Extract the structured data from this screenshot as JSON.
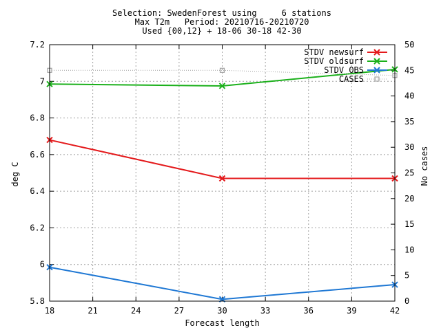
{
  "chart_data": {
    "type": "line",
    "title_lines": [
      "Selection: SwedenForest using     6 stations",
      "Max T2m   Period: 20210716-20210720",
      "Used {00,12} + 18-06 30-18 42-30"
    ],
    "xlabel": "Forecast length",
    "ylabel": "deg C",
    "y2label": "No cases",
    "x_ticks": [
      18,
      21,
      24,
      27,
      30,
      33,
      36,
      39,
      42
    ],
    "y_ticks": [
      5.8,
      6,
      6.2,
      6.4,
      6.6,
      6.8,
      7,
      7.2
    ],
    "y_tick_labels": [
      "5.8",
      "6",
      "6.2",
      "6.4",
      "6.6",
      "6.8",
      "7",
      "7.2"
    ],
    "y2_ticks": [
      0,
      5,
      10,
      15,
      20,
      25,
      30,
      35,
      40,
      45,
      50
    ],
    "xlim": [
      18,
      42
    ],
    "ylim": [
      5.8,
      7.2
    ],
    "y2lim": [
      0,
      50
    ],
    "grid": true,
    "legend_position": "top-right",
    "series": [
      {
        "name": "STDV newsurf",
        "axis": "y",
        "color": "#e41a1c",
        "marker": "x",
        "x": [
          18,
          30,
          42
        ],
        "values": [
          6.68,
          6.47,
          6.47
        ]
      },
      {
        "name": "STDV oldsurf",
        "axis": "y",
        "color": "#1bb01b",
        "marker": "x",
        "x": [
          18,
          30,
          42
        ],
        "values": [
          6.985,
          6.975,
          7.065
        ]
      },
      {
        "name": "STDV OBS",
        "axis": "y",
        "color": "#1f78d4",
        "marker": "x",
        "x": [
          18,
          30,
          42
        ],
        "values": [
          5.985,
          5.81,
          5.89
        ]
      },
      {
        "name": "CASES",
        "axis": "y2",
        "color": "#a0a0a0",
        "marker": "square",
        "x": [
          18,
          30,
          42
        ],
        "values": [
          45,
          45,
          44
        ]
      }
    ]
  }
}
